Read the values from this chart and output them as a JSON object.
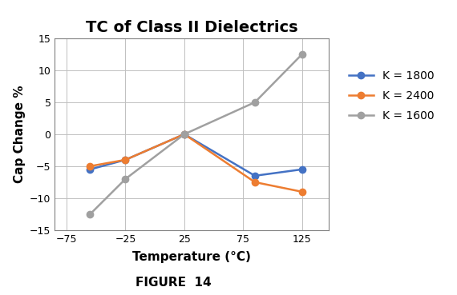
{
  "title": "TC of Class II Dielectrics",
  "xlabel": "Temperature (°C)",
  "ylabel": "Cap Change %",
  "figcaption": "FIGURE  14",
  "series": [
    {
      "label": "K = 1800",
      "color": "#4472C4",
      "x": [
        -55,
        -25,
        25,
        85,
        125
      ],
      "y": [
        -5.5,
        -4.0,
        0.0,
        -6.5,
        -5.5
      ]
    },
    {
      "label": "K = 2400",
      "color": "#ED7D31",
      "x": [
        -55,
        -25,
        25,
        85,
        125
      ],
      "y": [
        -5.0,
        -4.0,
        0.0,
        -7.5,
        -9.0
      ]
    },
    {
      "label": "K = 1600",
      "color": "#A0A0A0",
      "x": [
        -55,
        -25,
        25,
        85,
        125
      ],
      "y": [
        -12.5,
        -7.0,
        0.0,
        5.0,
        12.5
      ]
    }
  ],
  "xlim": [
    -85,
    148
  ],
  "ylim": [
    -15,
    15
  ],
  "xticks": [
    -75,
    -25,
    25,
    75,
    125
  ],
  "yticks": [
    -15,
    -10,
    -5,
    0,
    5,
    10,
    15
  ],
  "grid": true,
  "marker": "o",
  "markersize": 6,
  "linewidth": 1.8,
  "title_fontsize": 14,
  "label_fontsize": 11,
  "tick_fontsize": 9,
  "legend_fontsize": 10,
  "caption_fontsize": 11
}
